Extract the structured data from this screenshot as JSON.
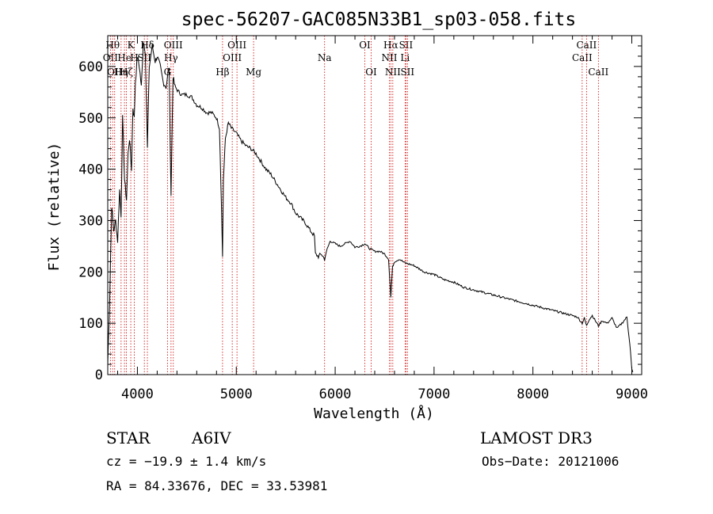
{
  "chart_data": {
    "type": "line",
    "title": "spec-56207-GAC085N33B1_sp03-058.fits",
    "xlabel": "Wavelength (Å)",
    "ylabel": "Flux (relative)",
    "xlim": [
      3700,
      9100
    ],
    "ylim": [
      0,
      660
    ],
    "x_ticks": [
      4000,
      5000,
      6000,
      7000,
      8000,
      9000
    ],
    "y_ticks": [
      0,
      100,
      200,
      300,
      400,
      500,
      600
    ],
    "x_tick_labels": [
      "4000",
      "5000",
      "6000",
      "7000",
      "8000",
      "9000"
    ],
    "y_tick_labels": [
      "0",
      "100",
      "200",
      "300",
      "400",
      "500",
      "600"
    ],
    "series": [
      {
        "name": "spectrum",
        "color": "#000000",
        "x": [
          3700,
          3720,
          3740,
          3760,
          3780,
          3800,
          3820,
          3835,
          3850,
          3870,
          3890,
          3905,
          3920,
          3940,
          3955,
          3968,
          3980,
          4000,
          4020,
          4040,
          4060,
          4080,
          4101,
          4120,
          4150,
          4180,
          4200,
          4230,
          4260,
          4290,
          4320,
          4340,
          4360,
          4380,
          4420,
          4450,
          4500,
          4550,
          4600,
          4650,
          4700,
          4750,
          4800,
          4830,
          4850,
          4861,
          4870,
          4890,
          4920,
          4950,
          5000,
          5050,
          5100,
          5150,
          5200,
          5250,
          5300,
          5350,
          5400,
          5450,
          5500,
          5550,
          5600,
          5650,
          5700,
          5750,
          5790,
          5800,
          5830,
          5860,
          5893,
          5920,
          5950,
          6000,
          6050,
          6100,
          6150,
          6200,
          6250,
          6300,
          6350,
          6400,
          6450,
          6500,
          6540,
          6563,
          6580,
          6600,
          6650,
          6700,
          6750,
          6800,
          6900,
          7000,
          7100,
          7200,
          7300,
          7400,
          7500,
          7600,
          7700,
          7800,
          7900,
          8000,
          8100,
          8200,
          8300,
          8400,
          8450,
          8498,
          8520,
          8542,
          8570,
          8600,
          8662,
          8700,
          8750,
          8800,
          8850,
          8900,
          8950,
          8980,
          9000,
          9010
        ],
        "values": [
          20,
          150,
          330,
          280,
          300,
          260,
          360,
          310,
          500,
          380,
          340,
          430,
          460,
          400,
          520,
          500,
          570,
          620,
          600,
          560,
          650,
          630,
          440,
          600,
          640,
          610,
          620,
          600,
          570,
          560,
          600,
          350,
          580,
          560,
          550,
          545,
          545,
          540,
          525,
          520,
          510,
          510,
          500,
          480,
          330,
          230,
          380,
          460,
          490,
          480,
          470,
          455,
          445,
          440,
          430,
          415,
          400,
          390,
          375,
          360,
          345,
          335,
          315,
          305,
          295,
          280,
          270,
          235,
          230,
          235,
          225,
          245,
          260,
          255,
          250,
          255,
          260,
          248,
          250,
          255,
          245,
          240,
          240,
          235,
          225,
          150,
          210,
          220,
          225,
          218,
          215,
          212,
          200,
          195,
          185,
          180,
          170,
          165,
          160,
          155,
          150,
          145,
          140,
          135,
          130,
          125,
          120,
          115,
          112,
          100,
          110,
          95,
          108,
          115,
          95,
          105,
          100,
          110,
          90,
          100,
          112,
          60,
          10,
          5
        ]
      }
    ],
    "line_color": "#cc0000",
    "lines": [
      {
        "wl": 3727,
        "label": "OII",
        "row": 2
      },
      {
        "wl": 3750,
        "label": "Hθ",
        "row": 1
      },
      {
        "wl": 3770,
        "label": "OII",
        "row": 3
      },
      {
        "wl": 3835,
        "label": "Hη",
        "row": 3
      },
      {
        "wl": 3869,
        "label": "He",
        "row": 2
      },
      {
        "wl": 3889,
        "label": "Hζ",
        "row": 3
      },
      {
        "wl": 3933,
        "label": "K",
        "row": 1
      },
      {
        "wl": 3968,
        "label": "H",
        "row": 2
      },
      {
        "wl": 4101,
        "label": "Hδ",
        "row": 1
      },
      {
        "wl": 4070,
        "label": "SII",
        "row": 2
      },
      {
        "wl": 4304,
        "label": "G",
        "row": 3
      },
      {
        "wl": 4340,
        "label": "Hγ",
        "row": 2
      },
      {
        "wl": 4363,
        "label": "OIII",
        "row": 1
      },
      {
        "wl": 4861,
        "label": "Hβ",
        "row": 3
      },
      {
        "wl": 4959,
        "label": "OIII",
        "row": 2
      },
      {
        "wl": 5007,
        "label": "OIII",
        "row": 1
      },
      {
        "wl": 5175,
        "label": "Mg",
        "row": 3
      },
      {
        "wl": 5893,
        "label": "Na",
        "row": 2
      },
      {
        "wl": 6300,
        "label": "OI",
        "row": 1
      },
      {
        "wl": 6364,
        "label": "OI",
        "row": 3
      },
      {
        "wl": 6548,
        "label": "NII",
        "row": 2
      },
      {
        "wl": 6563,
        "label": "Hα",
        "row": 1
      },
      {
        "wl": 6583,
        "label": "NII",
        "row": 3
      },
      {
        "wl": 6707,
        "label": "Li",
        "row": 2
      },
      {
        "wl": 6716,
        "label": "SII",
        "row": 1
      },
      {
        "wl": 6731,
        "label": "SII",
        "row": 3
      },
      {
        "wl": 8498,
        "label": "CaII",
        "row": 2
      },
      {
        "wl": 8542,
        "label": "CaII",
        "row": 1
      },
      {
        "wl": 8662,
        "label": "CaII",
        "row": 3
      }
    ]
  },
  "info": {
    "class": "STAR",
    "subclass": "A6IV",
    "survey": "LAMOST DR3",
    "cz": "cz = −19.9 ± 1.4 km/s",
    "obs_date": "Obs−Date: 20121006",
    "coords": "RA =  84.33676, DEC =  33.53981"
  }
}
